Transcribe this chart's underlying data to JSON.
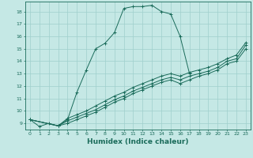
{
  "title": "",
  "xlabel": "Humidex (Indice chaleur)",
  "xlim": [
    -0.5,
    23.5
  ],
  "ylim": [
    8.5,
    18.8
  ],
  "xticks": [
    0,
    1,
    2,
    3,
    4,
    5,
    6,
    7,
    8,
    9,
    10,
    11,
    12,
    13,
    14,
    15,
    16,
    17,
    18,
    19,
    20,
    21,
    22,
    23
  ],
  "yticks": [
    9,
    10,
    11,
    12,
    13,
    14,
    15,
    16,
    17,
    18
  ],
  "background_color": "#c5e8e5",
  "grid_color": "#9fcfcc",
  "line_color": "#1a6b5a",
  "lines": [
    {
      "x": [
        0,
        1,
        2,
        3,
        4,
        5,
        6,
        7,
        8,
        9,
        10,
        11,
        12,
        13,
        14,
        15,
        16,
        17
      ],
      "y": [
        9.3,
        8.75,
        9.0,
        8.8,
        9.3,
        11.5,
        13.3,
        15.0,
        15.45,
        16.3,
        18.25,
        18.4,
        18.4,
        18.5,
        18.0,
        17.8,
        16.0,
        13.0
      ]
    },
    {
      "x": [
        0,
        3,
        4,
        5,
        6,
        7,
        8,
        9,
        10,
        11,
        12,
        13,
        14,
        15,
        16,
        17,
        18,
        19,
        20,
        21,
        22,
        23
      ],
      "y": [
        9.3,
        8.8,
        9.4,
        9.7,
        10.0,
        10.4,
        10.8,
        11.2,
        11.5,
        11.9,
        12.2,
        12.5,
        12.8,
        13.0,
        12.8,
        13.1,
        13.3,
        13.5,
        13.8,
        14.2,
        14.5,
        15.5
      ]
    },
    {
      "x": [
        0,
        3,
        4,
        5,
        6,
        7,
        8,
        9,
        10,
        11,
        12,
        13,
        14,
        15,
        16,
        17,
        18,
        19,
        20,
        21,
        22,
        23
      ],
      "y": [
        9.3,
        8.8,
        9.2,
        9.5,
        9.8,
        10.1,
        10.5,
        10.9,
        11.2,
        11.6,
        11.9,
        12.2,
        12.5,
        12.7,
        12.5,
        12.8,
        13.0,
        13.2,
        13.5,
        14.0,
        14.2,
        15.3
      ]
    },
    {
      "x": [
        0,
        3,
        4,
        5,
        6,
        7,
        8,
        9,
        10,
        11,
        12,
        13,
        14,
        15,
        16,
        17,
        18,
        19,
        20,
        21,
        22,
        23
      ],
      "y": [
        9.3,
        8.8,
        9.0,
        9.3,
        9.6,
        9.9,
        10.3,
        10.7,
        11.0,
        11.4,
        11.7,
        12.0,
        12.3,
        12.5,
        12.2,
        12.5,
        12.8,
        13.0,
        13.3,
        13.8,
        14.0,
        15.0
      ]
    }
  ]
}
